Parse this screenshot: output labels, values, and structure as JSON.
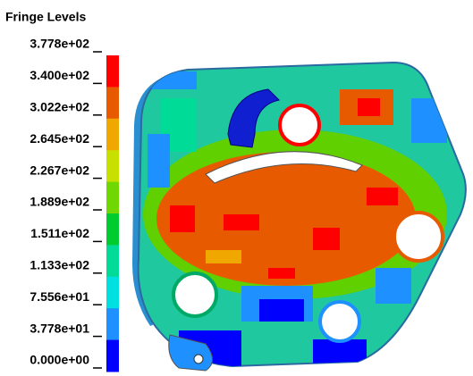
{
  "legend": {
    "title": "Fringe Levels",
    "levels": [
      "3.778e+02",
      "3.400e+02",
      "3.022e+02",
      "2.645e+02",
      "2.267e+02",
      "1.889e+02",
      "1.511e+02",
      "1.133e+02",
      "7.556e+01",
      "3.778e+01",
      "0.000e+00"
    ],
    "colors": [
      "#ff0000",
      "#e85a00",
      "#f0a800",
      "#c8e000",
      "#70d800",
      "#00cc30",
      "#00dc98",
      "#00e0e0",
      "#1e90ff",
      "#0000ff"
    ]
  }
}
